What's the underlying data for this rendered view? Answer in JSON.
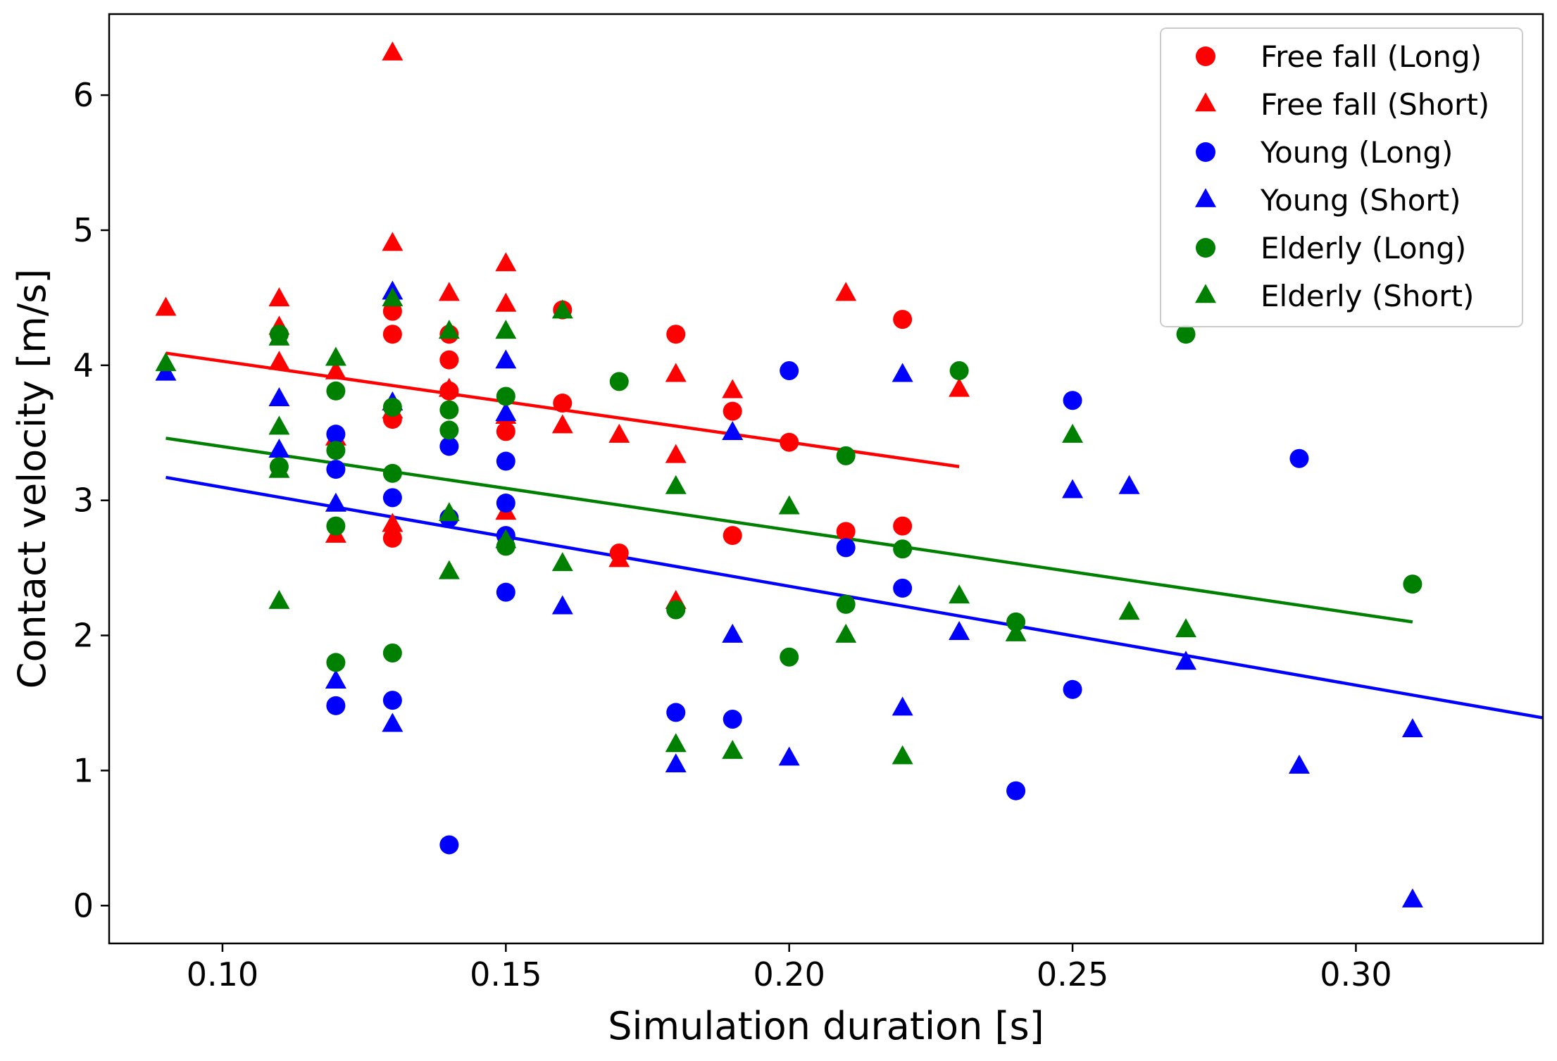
{
  "chart_data": {
    "type": "scatter",
    "title": "",
    "xlabel": "Simulation duration [s]",
    "ylabel": "Contact velocity [m/s]",
    "xlim": [
      0.08,
      0.333
    ],
    "ylim": [
      -0.28,
      6.6
    ],
    "xticks": [
      0.1,
      0.15,
      0.2,
      0.25,
      0.3
    ],
    "xtick_labels": [
      "0.10",
      "0.15",
      "0.20",
      "0.25",
      "0.30"
    ],
    "yticks": [
      0,
      1,
      2,
      3,
      4,
      5,
      6
    ],
    "ytick_labels": [
      "0",
      "1",
      "2",
      "3",
      "4",
      "5",
      "6"
    ],
    "grid": false,
    "legend_position": "top-right",
    "series": [
      {
        "name": "Free fall (Long)",
        "marker": "circle",
        "color": "#ff0000",
        "points": [
          [
            0.13,
            4.4
          ],
          [
            0.13,
            4.23
          ],
          [
            0.13,
            3.6
          ],
          [
            0.13,
            2.72
          ],
          [
            0.14,
            4.23
          ],
          [
            0.14,
            4.04
          ],
          [
            0.14,
            3.81
          ],
          [
            0.15,
            3.51
          ],
          [
            0.16,
            4.41
          ],
          [
            0.16,
            3.72
          ],
          [
            0.17,
            2.61
          ],
          [
            0.18,
            4.23
          ],
          [
            0.19,
            3.66
          ],
          [
            0.19,
            2.74
          ],
          [
            0.2,
            3.43
          ],
          [
            0.21,
            2.77
          ],
          [
            0.22,
            4.34
          ],
          [
            0.22,
            2.81
          ]
        ]
      },
      {
        "name": "Free fall (Short)",
        "marker": "triangle",
        "color": "#ff0000",
        "points": [
          [
            0.09,
            4.42
          ],
          [
            0.11,
            4.49
          ],
          [
            0.11,
            4.28
          ],
          [
            0.11,
            4.02
          ],
          [
            0.12,
            3.95
          ],
          [
            0.12,
            3.46
          ],
          [
            0.12,
            2.74
          ],
          [
            0.13,
            6.31
          ],
          [
            0.13,
            4.9
          ],
          [
            0.13,
            3.66
          ],
          [
            0.13,
            2.82
          ],
          [
            0.14,
            4.53
          ],
          [
            0.14,
            3.82
          ],
          [
            0.15,
            4.75
          ],
          [
            0.15,
            4.45
          ],
          [
            0.15,
            3.62
          ],
          [
            0.15,
            2.91
          ],
          [
            0.16,
            3.55
          ],
          [
            0.17,
            3.48
          ],
          [
            0.17,
            2.56
          ],
          [
            0.18,
            3.93
          ],
          [
            0.18,
            3.33
          ],
          [
            0.18,
            2.25
          ],
          [
            0.19,
            3.81
          ],
          [
            0.21,
            4.53
          ],
          [
            0.23,
            3.82
          ]
        ]
      },
      {
        "name": "Young (Long)",
        "marker": "circle",
        "color": "#0000ff",
        "points": [
          [
            0.12,
            3.49
          ],
          [
            0.12,
            3.23
          ],
          [
            0.12,
            1.48
          ],
          [
            0.13,
            3.02
          ],
          [
            0.13,
            1.52
          ],
          [
            0.14,
            3.4
          ],
          [
            0.14,
            2.87
          ],
          [
            0.14,
            0.45
          ],
          [
            0.15,
            3.29
          ],
          [
            0.15,
            2.98
          ],
          [
            0.15,
            2.74
          ],
          [
            0.15,
            2.32
          ],
          [
            0.18,
            1.43
          ],
          [
            0.19,
            1.38
          ],
          [
            0.2,
            3.96
          ],
          [
            0.21,
            2.65
          ],
          [
            0.22,
            2.35
          ],
          [
            0.24,
            0.85
          ],
          [
            0.25,
            3.74
          ],
          [
            0.25,
            1.6
          ],
          [
            0.29,
            3.31
          ]
        ]
      },
      {
        "name": "Young (Short)",
        "marker": "triangle",
        "color": "#0000ff",
        "points": [
          [
            0.09,
            3.94
          ],
          [
            0.11,
            3.75
          ],
          [
            0.11,
            3.37
          ],
          [
            0.12,
            2.97
          ],
          [
            0.12,
            1.66
          ],
          [
            0.13,
            4.54
          ],
          [
            0.13,
            3.72
          ],
          [
            0.13,
            1.34
          ],
          [
            0.15,
            4.03
          ],
          [
            0.15,
            3.64
          ],
          [
            0.16,
            2.21
          ],
          [
            0.18,
            1.04
          ],
          [
            0.19,
            3.5
          ],
          [
            0.19,
            2.0
          ],
          [
            0.2,
            1.09
          ],
          [
            0.22,
            3.93
          ],
          [
            0.22,
            1.46
          ],
          [
            0.23,
            2.02
          ],
          [
            0.25,
            3.07
          ],
          [
            0.26,
            3.1
          ],
          [
            0.27,
            1.8
          ],
          [
            0.29,
            1.03
          ],
          [
            0.31,
            1.3
          ],
          [
            0.31,
            0.04
          ]
        ]
      },
      {
        "name": "Elderly (Long)",
        "marker": "circle",
        "color": "#008000",
        "points": [
          [
            0.11,
            4.23
          ],
          [
            0.11,
            3.25
          ],
          [
            0.12,
            3.81
          ],
          [
            0.12,
            3.37
          ],
          [
            0.12,
            2.81
          ],
          [
            0.12,
            1.8
          ],
          [
            0.13,
            3.69
          ],
          [
            0.13,
            3.2
          ],
          [
            0.13,
            1.87
          ],
          [
            0.14,
            3.67
          ],
          [
            0.14,
            3.52
          ],
          [
            0.15,
            3.77
          ],
          [
            0.15,
            2.66
          ],
          [
            0.17,
            3.88
          ],
          [
            0.18,
            2.19
          ],
          [
            0.2,
            1.84
          ],
          [
            0.21,
            3.33
          ],
          [
            0.21,
            2.23
          ],
          [
            0.22,
            2.64
          ],
          [
            0.23,
            3.96
          ],
          [
            0.24,
            2.1
          ],
          [
            0.27,
            4.23
          ],
          [
            0.31,
            2.38
          ]
        ]
      },
      {
        "name": "Elderly (Short)",
        "marker": "triangle",
        "color": "#008000",
        "points": [
          [
            0.09,
            4.01
          ],
          [
            0.11,
            4.2
          ],
          [
            0.11,
            3.54
          ],
          [
            0.11,
            3.22
          ],
          [
            0.11,
            2.25
          ],
          [
            0.12,
            4.05
          ],
          [
            0.13,
            4.49
          ],
          [
            0.14,
            4.25
          ],
          [
            0.14,
            2.9
          ],
          [
            0.14,
            2.47
          ],
          [
            0.15,
            4.25
          ],
          [
            0.15,
            2.7
          ],
          [
            0.16,
            4.4
          ],
          [
            0.16,
            2.53
          ],
          [
            0.18,
            3.1
          ],
          [
            0.18,
            1.19
          ],
          [
            0.19,
            1.14
          ],
          [
            0.2,
            2.95
          ],
          [
            0.21,
            2.0
          ],
          [
            0.22,
            1.1
          ],
          [
            0.23,
            2.29
          ],
          [
            0.24,
            2.01
          ],
          [
            0.25,
            3.48
          ],
          [
            0.26,
            2.17
          ],
          [
            0.27,
            2.04
          ]
        ]
      }
    ],
    "fit_lines": [
      {
        "name": "Free fall trend",
        "color": "#ff0000",
        "x": [
          0.09,
          0.23
        ],
        "y": [
          4.09,
          3.25
        ]
      },
      {
        "name": "Elderly trend",
        "color": "#008000",
        "x": [
          0.09,
          0.31
        ],
        "y": [
          3.46,
          2.1
        ]
      },
      {
        "name": "Young trend",
        "color": "#0000ff",
        "x": [
          0.09,
          0.333
        ],
        "y": [
          3.17,
          1.39
        ]
      }
    ]
  }
}
